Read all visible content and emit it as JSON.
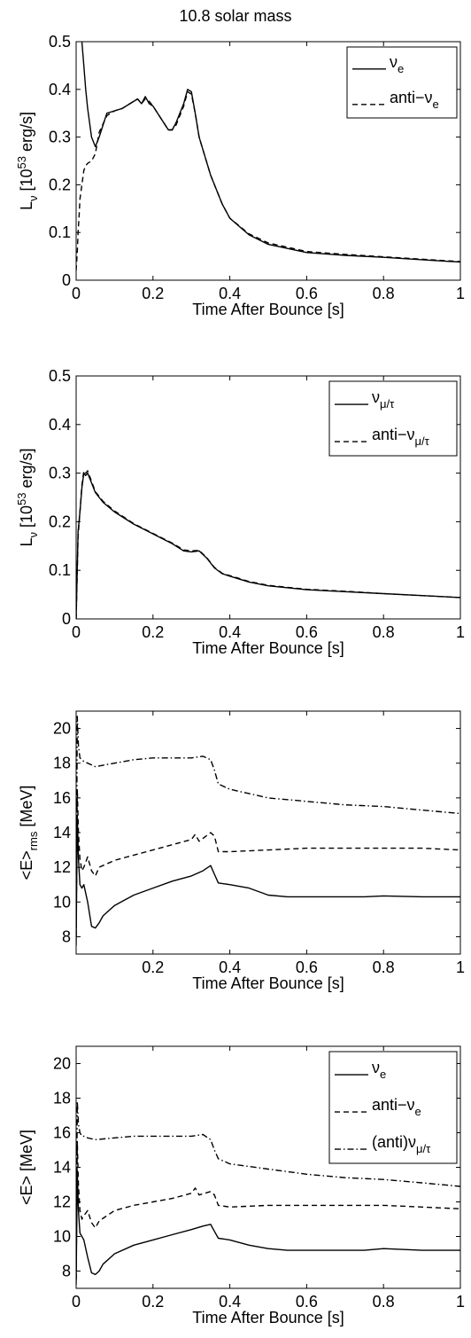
{
  "figure": {
    "title": "10.8 solar mass"
  },
  "chart_data": [
    {
      "type": "line",
      "xlabel": "Time After Bounce [s]",
      "ylabel_parts": [
        "L",
        "ν",
        " [10",
        "53",
        " erg/s]"
      ],
      "xlim": [
        0,
        1
      ],
      "ylim": [
        0,
        0.5
      ],
      "xticks": [
        0,
        0.2,
        0.4,
        0.6,
        0.8,
        1
      ],
      "xtick_labels": [
        "0",
        "0.2",
        "0.4",
        "0.6",
        "0.8",
        "1"
      ],
      "yticks": [
        0,
        0.1,
        0.2,
        0.3,
        0.4,
        0.5
      ],
      "ytick_labels": [
        "0",
        "0.1",
        "0.2",
        "0.3",
        "0.4",
        "0.5"
      ],
      "legend_position": "top-right",
      "series": [
        {
          "legend": [
            "ν",
            "e",
            ""
          ],
          "style": "solid",
          "x": [
            0.015,
            0.02,
            0.025,
            0.03,
            0.04,
            0.05,
            0.06,
            0.08,
            0.1,
            0.12,
            0.14,
            0.16,
            0.17,
            0.18,
            0.19,
            0.2,
            0.22,
            0.24,
            0.25,
            0.26,
            0.28,
            0.29,
            0.3,
            0.31,
            0.32,
            0.35,
            0.38,
            0.4,
            0.45,
            0.5,
            0.6,
            0.7,
            0.8,
            0.9,
            1.0
          ],
          "y": [
            0.5,
            0.45,
            0.4,
            0.36,
            0.3,
            0.28,
            0.3,
            0.35,
            0.355,
            0.36,
            0.37,
            0.38,
            0.37,
            0.385,
            0.37,
            0.365,
            0.34,
            0.315,
            0.315,
            0.33,
            0.37,
            0.4,
            0.395,
            0.35,
            0.3,
            0.22,
            0.16,
            0.13,
            0.095,
            0.075,
            0.058,
            0.052,
            0.048,
            0.043,
            0.038
          ]
        },
        {
          "legend": [
            "anti−ν",
            "e",
            ""
          ],
          "style": "dashed",
          "x": [
            0.0,
            0.003,
            0.005,
            0.008,
            0.01,
            0.015,
            0.02,
            0.025,
            0.03,
            0.04,
            0.05,
            0.06,
            0.08,
            0.1,
            0.12,
            0.14,
            0.16,
            0.17,
            0.18,
            0.19,
            0.2,
            0.22,
            0.24,
            0.25,
            0.26,
            0.28,
            0.29,
            0.3,
            0.31,
            0.32,
            0.35,
            0.38,
            0.4,
            0.45,
            0.5,
            0.6,
            0.7,
            0.8,
            0.9,
            1.0
          ],
          "y": [
            0.02,
            0.06,
            0.1,
            0.14,
            0.17,
            0.2,
            0.23,
            0.24,
            0.245,
            0.25,
            0.265,
            0.31,
            0.345,
            0.355,
            0.36,
            0.37,
            0.38,
            0.37,
            0.38,
            0.375,
            0.365,
            0.34,
            0.315,
            0.315,
            0.325,
            0.365,
            0.395,
            0.39,
            0.35,
            0.3,
            0.22,
            0.16,
            0.13,
            0.097,
            0.078,
            0.06,
            0.054,
            0.049,
            0.044,
            0.039
          ]
        }
      ]
    },
    {
      "type": "line",
      "xlabel": "Time After Bounce [s]",
      "ylabel_parts": [
        "L",
        "ν",
        " [10",
        "53",
        " erg/s]"
      ],
      "xlim": [
        0,
        1
      ],
      "ylim": [
        0,
        0.5
      ],
      "xticks": [
        0,
        0.2,
        0.4,
        0.6,
        0.8,
        1
      ],
      "xtick_labels": [
        "0",
        "0.2",
        "0.4",
        "0.6",
        "0.8",
        "1"
      ],
      "yticks": [
        0,
        0.1,
        0.2,
        0.3,
        0.4,
        0.5
      ],
      "ytick_labels": [
        "0",
        "0.1",
        "0.2",
        "0.3",
        "0.4",
        "0.5"
      ],
      "legend_position": "top-right",
      "series": [
        {
          "legend": [
            "ν",
            "μ/τ",
            ""
          ],
          "style": "solid",
          "x": [
            0.0,
            0.005,
            0.01,
            0.015,
            0.02,
            0.025,
            0.03,
            0.04,
            0.05,
            0.07,
            0.1,
            0.15,
            0.2,
            0.25,
            0.28,
            0.3,
            0.32,
            0.34,
            0.36,
            0.38,
            0.4,
            0.45,
            0.5,
            0.6,
            0.7,
            0.8,
            0.9,
            1.0
          ],
          "y": [
            0.0,
            0.18,
            0.22,
            0.27,
            0.3,
            0.295,
            0.3,
            0.28,
            0.26,
            0.24,
            0.22,
            0.195,
            0.175,
            0.155,
            0.14,
            0.138,
            0.14,
            0.125,
            0.105,
            0.093,
            0.088,
            0.076,
            0.068,
            0.06,
            0.056,
            0.052,
            0.048,
            0.044
          ]
        },
        {
          "legend": [
            "anti−ν",
            "μ/τ",
            ""
          ],
          "style": "dashed",
          "x": [
            0.0,
            0.005,
            0.01,
            0.015,
            0.02,
            0.025,
            0.03,
            0.04,
            0.05,
            0.07,
            0.1,
            0.15,
            0.2,
            0.25,
            0.28,
            0.3,
            0.32,
            0.34,
            0.36,
            0.38,
            0.4,
            0.45,
            0.5,
            0.6,
            0.7,
            0.8,
            0.9,
            1.0
          ],
          "y": [
            0.0,
            0.17,
            0.22,
            0.275,
            0.305,
            0.3,
            0.305,
            0.283,
            0.262,
            0.242,
            0.222,
            0.196,
            0.176,
            0.156,
            0.142,
            0.14,
            0.141,
            0.126,
            0.106,
            0.094,
            0.089,
            0.077,
            0.069,
            0.061,
            0.057,
            0.052,
            0.048,
            0.044
          ]
        }
      ]
    },
    {
      "type": "line",
      "xlabel": "Time After Bounce [s]",
      "ylabel_parts": [
        "<E>",
        "rms",
        " [MeV]"
      ],
      "xlim": [
        0,
        1
      ],
      "ylim": [
        7,
        21
      ],
      "xticks": [
        0.2,
        0.4,
        0.6,
        0.8,
        1
      ],
      "xtick_labels": [
        "0.2",
        "0.4",
        "0.6",
        "0.8",
        "1"
      ],
      "yticks": [
        8,
        10,
        12,
        14,
        16,
        18,
        20
      ],
      "ytick_labels": [
        "8",
        "10",
        "12",
        "14",
        "16",
        "18",
        "20"
      ],
      "legend_position": "none",
      "series": [
        {
          "legend": [
            "",
            "",
            ""
          ],
          "style": "solid",
          "x": [
            0.0,
            0.003,
            0.006,
            0.01,
            0.015,
            0.02,
            0.03,
            0.04,
            0.05,
            0.06,
            0.07,
            0.1,
            0.15,
            0.2,
            0.25,
            0.3,
            0.33,
            0.35,
            0.36,
            0.37,
            0.4,
            0.45,
            0.5,
            0.55,
            0.6,
            0.7,
            0.75,
            0.8,
            0.9,
            1.0
          ],
          "y": [
            7.5,
            15.0,
            12.5,
            11.0,
            10.8,
            11.0,
            10.0,
            8.6,
            8.5,
            8.8,
            9.2,
            9.8,
            10.4,
            10.8,
            11.2,
            11.5,
            11.8,
            12.1,
            11.6,
            11.1,
            11.0,
            10.8,
            10.4,
            10.3,
            10.3,
            10.3,
            10.3,
            10.35,
            10.3,
            10.3
          ]
        },
        {
          "legend": [
            "",
            "",
            ""
          ],
          "style": "dashed",
          "x": [
            0.0,
            0.003,
            0.006,
            0.01,
            0.015,
            0.02,
            0.03,
            0.04,
            0.05,
            0.06,
            0.08,
            0.1,
            0.15,
            0.2,
            0.25,
            0.3,
            0.31,
            0.32,
            0.35,
            0.36,
            0.37,
            0.4,
            0.5,
            0.6,
            0.7,
            0.8,
            0.9,
            1.0
          ],
          "y": [
            8.0,
            16.5,
            14.0,
            12.5,
            11.8,
            12.0,
            12.6,
            11.8,
            11.5,
            12.0,
            12.2,
            12.4,
            12.7,
            13.0,
            13.3,
            13.6,
            13.9,
            13.5,
            14.0,
            13.8,
            12.9,
            12.9,
            13.0,
            13.1,
            13.1,
            13.1,
            13.1,
            13.0
          ]
        },
        {
          "legend": [
            "",
            "",
            ""
          ],
          "style": "dashdot",
          "x": [
            0.0,
            0.003,
            0.006,
            0.01,
            0.015,
            0.02,
            0.03,
            0.05,
            0.1,
            0.15,
            0.2,
            0.25,
            0.3,
            0.33,
            0.35,
            0.36,
            0.37,
            0.4,
            0.5,
            0.6,
            0.7,
            0.8,
            0.9,
            1.0
          ],
          "y": [
            8.0,
            20.7,
            19.0,
            18.3,
            18.2,
            18.1,
            18.0,
            17.8,
            18.0,
            18.2,
            18.3,
            18.3,
            18.3,
            18.4,
            18.2,
            17.6,
            16.8,
            16.5,
            16.0,
            15.8,
            15.6,
            15.5,
            15.3,
            15.1
          ]
        }
      ]
    },
    {
      "type": "line",
      "xlabel": "Time After Bounce [s]",
      "ylabel_parts": [
        "<E> [MeV]",
        "",
        ""
      ],
      "xlim": [
        0,
        1
      ],
      "ylim": [
        7,
        21
      ],
      "xticks": [
        0,
        0.2,
        0.4,
        0.6,
        0.8,
        1
      ],
      "xtick_labels": [
        "0",
        "0.2",
        "0.4",
        "0.6",
        "0.8",
        "1"
      ],
      "yticks": [
        8,
        10,
        12,
        14,
        16,
        18,
        20
      ],
      "ytick_labels": [
        "8",
        "10",
        "12",
        "14",
        "16",
        "18",
        "20"
      ],
      "legend_position": "top-right",
      "series": [
        {
          "legend": [
            "ν",
            "e",
            ""
          ],
          "style": "solid",
          "x": [
            0.0,
            0.003,
            0.006,
            0.01,
            0.015,
            0.02,
            0.03,
            0.04,
            0.05,
            0.06,
            0.07,
            0.1,
            0.15,
            0.2,
            0.25,
            0.3,
            0.33,
            0.35,
            0.36,
            0.37,
            0.4,
            0.45,
            0.5,
            0.55,
            0.6,
            0.7,
            0.75,
            0.8,
            0.9,
            1.0
          ],
          "y": [
            7.2,
            13.8,
            11.5,
            10.2,
            10.0,
            9.8,
            8.8,
            7.9,
            7.8,
            8.0,
            8.4,
            9.0,
            9.5,
            9.8,
            10.1,
            10.4,
            10.6,
            10.7,
            10.3,
            9.9,
            9.8,
            9.5,
            9.3,
            9.2,
            9.2,
            9.2,
            9.2,
            9.3,
            9.2,
            9.2
          ]
        },
        {
          "legend": [
            "anti−ν",
            "e",
            ""
          ],
          "style": "dashed",
          "x": [
            0.0,
            0.003,
            0.006,
            0.01,
            0.015,
            0.02,
            0.03,
            0.04,
            0.05,
            0.06,
            0.08,
            0.1,
            0.15,
            0.2,
            0.25,
            0.3,
            0.31,
            0.32,
            0.35,
            0.36,
            0.37,
            0.4,
            0.5,
            0.6,
            0.7,
            0.8,
            0.9,
            1.0
          ],
          "y": [
            7.5,
            15.5,
            13.0,
            11.5,
            11.0,
            11.2,
            11.5,
            10.8,
            10.5,
            10.9,
            11.2,
            11.5,
            11.8,
            12.0,
            12.2,
            12.5,
            12.8,
            12.4,
            12.6,
            12.4,
            11.8,
            11.7,
            11.8,
            11.8,
            11.8,
            11.8,
            11.7,
            11.6
          ]
        },
        {
          "legend": [
            "(anti)ν",
            "μ/τ",
            ""
          ],
          "style": "dashdot",
          "x": [
            0.0,
            0.003,
            0.006,
            0.01,
            0.015,
            0.02,
            0.03,
            0.05,
            0.1,
            0.15,
            0.2,
            0.25,
            0.3,
            0.33,
            0.35,
            0.36,
            0.37,
            0.4,
            0.5,
            0.6,
            0.7,
            0.8,
            0.9,
            1.0
          ],
          "y": [
            7.5,
            17.8,
            16.5,
            16.0,
            15.8,
            15.8,
            15.7,
            15.6,
            15.7,
            15.8,
            15.8,
            15.8,
            15.8,
            15.9,
            15.6,
            15.0,
            14.5,
            14.2,
            13.9,
            13.6,
            13.4,
            13.3,
            13.1,
            12.9
          ]
        }
      ]
    }
  ]
}
